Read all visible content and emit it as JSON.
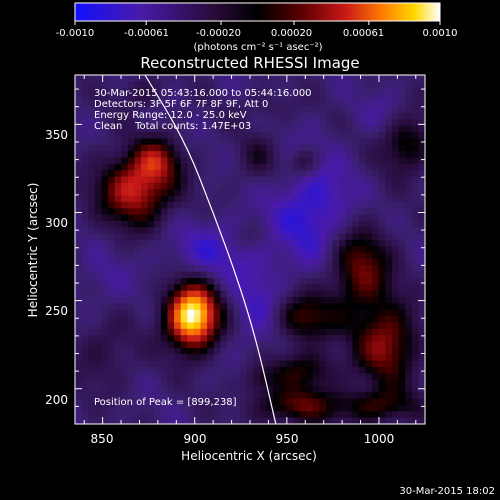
{
  "colorbar": {
    "tick_labels": [
      "-0.0010",
      "-0.00061",
      "-0.00020",
      "0.00020",
      "0.00061",
      "0.0010"
    ],
    "tick_values": [
      -0.001,
      -0.00061,
      -0.0002,
      0.0002,
      0.00061,
      0.001
    ],
    "range": [
      -0.001,
      0.001
    ],
    "units_label": "(photons cm⁻² s⁻¹ asec⁻²)",
    "colors": [
      "#1010ff",
      "#4a1aa8",
      "#2a0a3a",
      "#000000",
      "#5a0000",
      "#c81818",
      "#ff7a00",
      "#ffd800",
      "#ffffff"
    ]
  },
  "plot": {
    "title": "Reconstructed RHESSI Image",
    "xlabel": "Heliocentric X (arcsec)",
    "ylabel": "Heliocentric Y (arcsec)",
    "xlim": [
      835,
      1025
    ],
    "ylim": [
      180,
      378
    ],
    "xticks": [
      850,
      900,
      950,
      1000
    ],
    "yticks": [
      200,
      250,
      300,
      350
    ],
    "info_lines": [
      "30-Mar-2015 05:43:16.000 to 05:44:16.000",
      "Detectors: 3F 5F 6F 7F 8F 9F, Att 0",
      "Energy Range: 12.0 - 25.0 keV",
      "Clean    Total counts: 1.47E+03"
    ],
    "peak_text": "Position of Peak = [899,238]",
    "peak": [
      899,
      238
    ],
    "limb_curve": [
      [
        873,
        378
      ],
      [
        895,
        340
      ],
      [
        910,
        300
      ],
      [
        924,
        260
      ],
      [
        934,
        225
      ],
      [
        944,
        180
      ]
    ]
  },
  "footer": {
    "timestamp": "30-Mar-2015 18:02"
  }
}
